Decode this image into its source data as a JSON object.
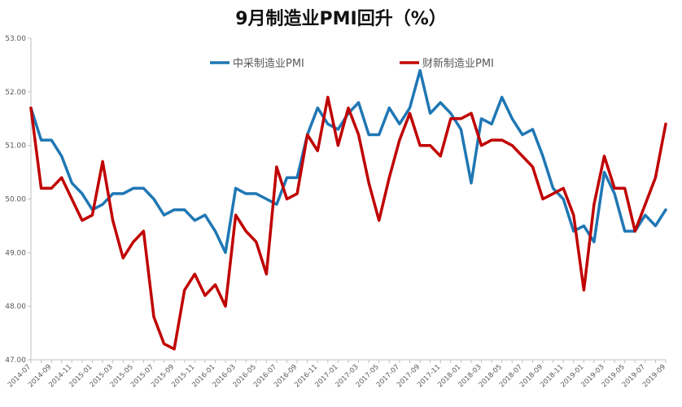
{
  "chart_data": {
    "type": "line",
    "title": "9月制造业PMI回升（%）",
    "xlabel": "",
    "ylabel": "",
    "ylim": [
      47.0,
      53.0
    ],
    "yticks": [
      "47.00",
      "48.00",
      "49.00",
      "50.00",
      "51.00",
      "52.00",
      "53.00"
    ],
    "ytick_values": [
      47,
      48,
      49,
      50,
      51,
      52,
      53
    ],
    "x": [
      "2014-07",
      "2014-08",
      "2014-09",
      "2014-10",
      "2014-11",
      "2014-12",
      "2015-01",
      "2015-02",
      "2015-03",
      "2015-04",
      "2015-05",
      "2015-06",
      "2015-07",
      "2015-08",
      "2015-09",
      "2015-10",
      "2015-11",
      "2015-12",
      "2016-01",
      "2016-02",
      "2016-03",
      "2016-04",
      "2016-05",
      "2016-06",
      "2016-07",
      "2016-08",
      "2016-09",
      "2016-10",
      "2016-11",
      "2016-12",
      "2017-01",
      "2017-02",
      "2017-03",
      "2017-04",
      "2017-05",
      "2017-06",
      "2017-07",
      "2017-08",
      "2017-09",
      "2017-10",
      "2017-11",
      "2017-12",
      "2018-01",
      "2018-02",
      "2018-03",
      "2018-04",
      "2018-05",
      "2018-06",
      "2018-07",
      "2018-08",
      "2018-09",
      "2018-10",
      "2018-11",
      "2018-12",
      "2019-01",
      "2019-02",
      "2019-03",
      "2019-04",
      "2019-05",
      "2019-06",
      "2019-07",
      "2019-08",
      "2019-09"
    ],
    "xtick_labels": [
      "2014-07",
      "2014-09",
      "2014-11",
      "2015-01",
      "2015-03",
      "2015-05",
      "2015-07",
      "2015-09",
      "2015-11",
      "2016-01",
      "2016-03",
      "2016-05",
      "2016-07",
      "2016-09",
      "2016-11",
      "2017-01",
      "2017-03",
      "2017-05",
      "2017-07",
      "2017-09",
      "2017-11",
      "2018-01",
      "2018-03",
      "2018-05",
      "2018-07",
      "2018-09",
      "2018-11",
      "2019-01",
      "2019-03",
      "2019-05",
      "2019-07",
      "2019-09"
    ],
    "grid": false,
    "legend": "top",
    "series": [
      {
        "name": "中采制造业PMI",
        "color": "#1f77b4",
        "values": [
          51.7,
          51.1,
          51.1,
          50.8,
          50.3,
          50.1,
          49.8,
          49.9,
          50.1,
          50.1,
          50.2,
          50.2,
          50.0,
          49.7,
          49.8,
          49.8,
          49.6,
          49.7,
          49.4,
          49.0,
          50.2,
          50.1,
          50.1,
          50.0,
          49.9,
          50.4,
          50.4,
          51.2,
          51.7,
          51.4,
          51.3,
          51.6,
          51.8,
          51.2,
          51.2,
          51.7,
          51.4,
          51.7,
          52.4,
          51.6,
          51.8,
          51.6,
          51.3,
          50.3,
          51.5,
          51.4,
          51.9,
          51.5,
          51.2,
          51.3,
          50.8,
          50.2,
          50.0,
          49.4,
          49.5,
          49.2,
          50.5,
          50.1,
          49.4,
          49.4,
          49.7,
          49.5,
          49.8
        ]
      },
      {
        "name": "财新制造业PMI",
        "color": "#c00000",
        "values": [
          51.7,
          50.2,
          50.2,
          50.4,
          50.0,
          49.6,
          49.7,
          50.7,
          49.6,
          48.9,
          49.2,
          49.4,
          47.8,
          47.3,
          47.2,
          48.3,
          48.6,
          48.2,
          48.4,
          48.0,
          49.7,
          49.4,
          49.2,
          48.6,
          50.6,
          50.0,
          50.1,
          51.2,
          50.9,
          51.9,
          51.0,
          51.7,
          51.2,
          50.3,
          49.6,
          50.4,
          51.1,
          51.6,
          51.0,
          51.0,
          50.8,
          51.5,
          51.5,
          51.6,
          51.0,
          51.1,
          51.1,
          51.0,
          50.8,
          50.6,
          50.0,
          50.1,
          50.2,
          49.7,
          48.3,
          49.9,
          50.8,
          50.2,
          50.2,
          49.4,
          49.9,
          50.4,
          51.4
        ]
      }
    ]
  }
}
